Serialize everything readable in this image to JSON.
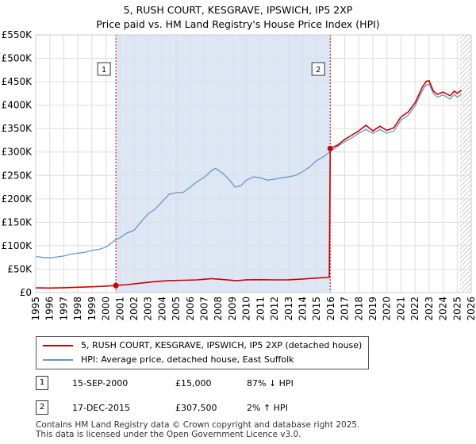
{
  "chart_data": {
    "type": "line",
    "title": "5, RUSH COURT, KESGRAVE, IPSWICH, IP5 2XP",
    "subtitle": "Price paid vs. HM Land Registry's House Price Index (HPI)",
    "xlim": [
      1995,
      2026
    ],
    "ylim": [
      0,
      550000
    ],
    "x_ticks": [
      "1995",
      "1996",
      "1997",
      "1998",
      "1999",
      "2000",
      "2001",
      "2002",
      "2003",
      "2004",
      "2005",
      "2006",
      "2007",
      "2008",
      "2009",
      "2010",
      "2011",
      "2012",
      "2013",
      "2014",
      "2015",
      "2016",
      "2017",
      "2018",
      "2019",
      "2020",
      "2021",
      "2022",
      "2023",
      "2024",
      "2025",
      "2026"
    ],
    "y_ticks": [
      {
        "value": 0,
        "label": "£0"
      },
      {
        "value": 50000,
        "label": "£50K"
      },
      {
        "value": 100000,
        "label": "£100K"
      },
      {
        "value": 150000,
        "label": "£150K"
      },
      {
        "value": 200000,
        "label": "£200K"
      },
      {
        "value": 250000,
        "label": "£250K"
      },
      {
        "value": 300000,
        "label": "£300K"
      },
      {
        "value": 350000,
        "label": "£350K"
      },
      {
        "value": 400000,
        "label": "£400K"
      },
      {
        "value": 450000,
        "label": "£450K"
      },
      {
        "value": 500000,
        "label": "£500K"
      },
      {
        "value": 550000,
        "label": "£550K"
      }
    ],
    "grid": true,
    "shaded_ranges": [
      {
        "from": 2000.71,
        "to": 2015.96,
        "color": "#dde6f5"
      }
    ],
    "hatched_from": 2025.2,
    "series": [
      {
        "name": "5, RUSH COURT, KESGRAVE, IPSWICH, IP5 2XP (detached house)",
        "color": "#cc0000",
        "points": [
          [
            1995.0,
            10000
          ],
          [
            1996.0,
            9700
          ],
          [
            1997.0,
            10400
          ],
          [
            1998.0,
            11300
          ],
          [
            1999.0,
            12400
          ],
          [
            2000.0,
            13700
          ],
          [
            2000.71,
            15000
          ],
          [
            2001.5,
            17000
          ],
          [
            2002.5,
            20200
          ],
          [
            2003.5,
            23300
          ],
          [
            2004.5,
            25500
          ],
          [
            2005.5,
            26300
          ],
          [
            2006.5,
            27000
          ],
          [
            2007.5,
            29800
          ],
          [
            2008.5,
            27500
          ],
          [
            2009.3,
            25300
          ],
          [
            2010.0,
            27300
          ],
          [
            2011.0,
            27500
          ],
          [
            2012.0,
            27000
          ],
          [
            2013.0,
            27300
          ],
          [
            2014.0,
            29000
          ],
          [
            2015.0,
            31000
          ],
          [
            2015.9,
            32500
          ],
          [
            2015.96,
            307500
          ],
          [
            2016.5,
            315000
          ],
          [
            2017.0,
            327000
          ],
          [
            2017.5,
            336000
          ],
          [
            2018.0,
            345000
          ],
          [
            2018.5,
            357000
          ],
          [
            2019.0,
            345000
          ],
          [
            2019.5,
            355000
          ],
          [
            2020.0,
            346000
          ],
          [
            2020.5,
            352000
          ],
          [
            2021.0,
            375000
          ],
          [
            2021.5,
            385000
          ],
          [
            2022.0,
            405000
          ],
          [
            2022.5,
            437000
          ],
          [
            2022.8,
            451000
          ],
          [
            2023.0,
            452000
          ],
          [
            2023.3,
            430000
          ],
          [
            2023.6,
            423000
          ],
          [
            2024.0,
            428000
          ],
          [
            2024.5,
            420000
          ],
          [
            2024.8,
            430000
          ],
          [
            2025.0,
            425000
          ],
          [
            2025.3,
            432000
          ]
        ]
      },
      {
        "name": "HPI: Average price, detached house, East Suffolk",
        "color": "#6699cc",
        "points": [
          [
            1995.0,
            77000
          ],
          [
            1995.5,
            75000
          ],
          [
            1996.0,
            74000
          ],
          [
            1996.5,
            76000
          ],
          [
            1997.0,
            78000
          ],
          [
            1997.5,
            82000
          ],
          [
            1998.0,
            84000
          ],
          [
            1998.5,
            86000
          ],
          [
            1999.0,
            90000
          ],
          [
            1999.5,
            92000
          ],
          [
            2000.0,
            97000
          ],
          [
            2000.71,
            113000
          ],
          [
            2001.0,
            117000
          ],
          [
            2001.5,
            127000
          ],
          [
            2002.0,
            133000
          ],
          [
            2002.5,
            151000
          ],
          [
            2003.0,
            168000
          ],
          [
            2003.5,
            178000
          ],
          [
            2004.0,
            194000
          ],
          [
            2004.5,
            210000
          ],
          [
            2005.0,
            213000
          ],
          [
            2005.5,
            214000
          ],
          [
            2006.0,
            225000
          ],
          [
            2006.5,
            237000
          ],
          [
            2007.0,
            246000
          ],
          [
            2007.5,
            260000
          ],
          [
            2007.8,
            265000
          ],
          [
            2008.3,
            255000
          ],
          [
            2008.8,
            240000
          ],
          [
            2009.2,
            225000
          ],
          [
            2009.6,
            228000
          ],
          [
            2010.0,
            240000
          ],
          [
            2010.5,
            247000
          ],
          [
            2011.0,
            245000
          ],
          [
            2011.5,
            240000
          ],
          [
            2012.0,
            242000
          ],
          [
            2012.5,
            245000
          ],
          [
            2013.0,
            247000
          ],
          [
            2013.5,
            250000
          ],
          [
            2014.0,
            258000
          ],
          [
            2014.5,
            268000
          ],
          [
            2015.0,
            282000
          ],
          [
            2015.5,
            290000
          ],
          [
            2015.96,
            301000
          ],
          [
            2016.5,
            312000
          ],
          [
            2017.0,
            322000
          ],
          [
            2017.5,
            330000
          ],
          [
            2018.0,
            340000
          ],
          [
            2018.5,
            348000
          ],
          [
            2019.0,
            340000
          ],
          [
            2019.5,
            348000
          ],
          [
            2020.0,
            340000
          ],
          [
            2020.5,
            345000
          ],
          [
            2021.0,
            368000
          ],
          [
            2021.5,
            378000
          ],
          [
            2022.0,
            398000
          ],
          [
            2022.5,
            430000
          ],
          [
            2022.8,
            443000
          ],
          [
            2023.0,
            445000
          ],
          [
            2023.3,
            425000
          ],
          [
            2023.6,
            417000
          ],
          [
            2024.0,
            422000
          ],
          [
            2024.5,
            413000
          ],
          [
            2024.8,
            423000
          ],
          [
            2025.0,
            417000
          ],
          [
            2025.3,
            424000
          ]
        ]
      }
    ],
    "sales": [
      {
        "label": "1",
        "x": 2000.71,
        "y": 15000
      },
      {
        "label": "2",
        "x": 2015.96,
        "y": 307500
      }
    ]
  },
  "legend": {
    "items": [
      {
        "label": "5, RUSH COURT, KESGRAVE, IPSWICH, IP5 2XP (detached house)",
        "color": "#cc0000"
      },
      {
        "label": "HPI: Average price, detached house, East Suffolk",
        "color": "#6699cc"
      }
    ]
  },
  "transactions": [
    {
      "num": "1",
      "date": "15-SEP-2000",
      "price": "£15,000",
      "hpi": "87% ↓ HPI"
    },
    {
      "num": "2",
      "date": "17-DEC-2015",
      "price": "£307,500",
      "hpi": "2% ↑ HPI"
    }
  ],
  "footer": {
    "line1": "Contains HM Land Registry data © Crown copyright and database right 2025.",
    "line2": "This data is licensed under the Open Government Licence v3.0."
  }
}
